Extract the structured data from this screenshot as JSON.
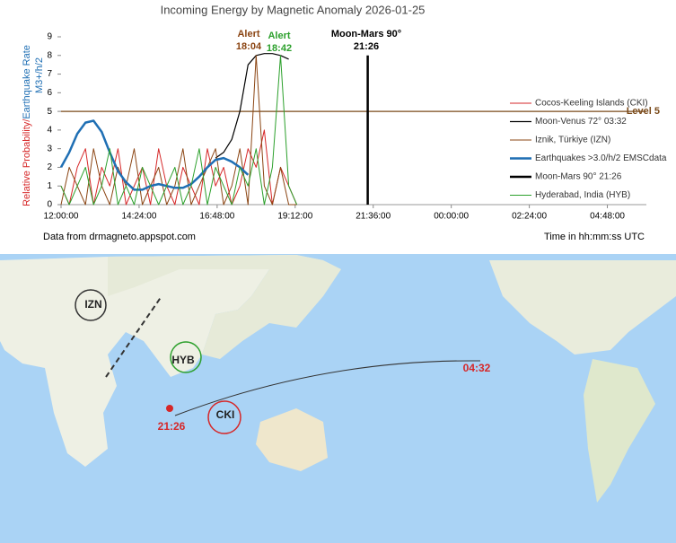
{
  "chart_data": {
    "type": "line",
    "title": "Incoming Energy by Magnetic Anomaly 2026-01-25",
    "ylabel_parts": [
      "Relative Probability/",
      "Earthquake Rate"
    ],
    "ylabel2": "M3+/h/2",
    "ylim": [
      0,
      9
    ],
    "yticks": [
      0,
      1,
      2,
      3,
      4,
      5,
      6,
      7,
      8,
      9
    ],
    "xlim": [
      12,
      30
    ],
    "xticks": [
      {
        "value": 12,
        "label": "12:00:00"
      },
      {
        "value": 14.4,
        "label": "14:24:00"
      },
      {
        "value": 16.8,
        "label": "16:48:00"
      },
      {
        "value": 19.2,
        "label": "19:12:00"
      },
      {
        "value": 21.6,
        "label": "21:36:00"
      },
      {
        "value": 24,
        "label": "00:00:00"
      },
      {
        "value": 26.4,
        "label": "02:24:00"
      },
      {
        "value": 28.8,
        "label": "04:48:00"
      }
    ],
    "x": [
      12,
      12.25,
      12.5,
      12.75,
      13,
      13.25,
      13.5,
      13.75,
      14,
      14.25,
      14.5,
      14.75,
      15,
      15.25,
      15.5,
      15.75,
      16,
      16.25,
      16.5,
      16.75,
      17,
      17.25,
      17.5,
      17.75,
      18,
      18.25,
      18.5,
      18.75,
      19,
      19.25
    ],
    "series": [
      {
        "name": "Cocos-Keeling Islands (CKI)",
        "color": "#d62728",
        "width": 1,
        "values": [
          1,
          0,
          2,
          3,
          0,
          2,
          1,
          3,
          0,
          1,
          2,
          0,
          3,
          1,
          0,
          2,
          1,
          0,
          3,
          1,
          2,
          0,
          1,
          3,
          2,
          4,
          0,
          2,
          1,
          0
        ]
      },
      {
        "name": "Moon-Venus 72° 03:32",
        "color": "#000000",
        "width": 1.2,
        "values": [
          null,
          null,
          null,
          null,
          null,
          null,
          null,
          null,
          null,
          null,
          null,
          null,
          null,
          null,
          null,
          null,
          null,
          null,
          null,
          2.5,
          2.8,
          3.5,
          5.0,
          7.5,
          8.0,
          8.1,
          8.1,
          8.0,
          7.8,
          null
        ]
      },
      {
        "name": "Iznik, Türkiye (IZN)",
        "color": "#8b4513",
        "width": 1,
        "values": [
          0,
          2,
          1,
          0,
          3,
          1,
          0,
          2,
          1,
          3,
          0,
          1,
          2,
          0,
          1,
          3,
          0,
          1,
          2,
          3,
          0,
          1,
          3,
          0,
          8,
          1,
          0,
          2,
          0,
          0
        ]
      },
      {
        "name": "Earthquakes >3.0/h/2 EMSCdata",
        "color": "#1f6fb4",
        "width": 2.5,
        "values": [
          2,
          2.8,
          3.8,
          4.4,
          4.5,
          3.9,
          2.8,
          1.8,
          1.2,
          0.8,
          0.8,
          1.0,
          1.1,
          1.0,
          0.9,
          0.9,
          1.1,
          1.5,
          2.0,
          2.4,
          2.5,
          2.3,
          2.0,
          1.6,
          null,
          null,
          null,
          null,
          null,
          null
        ]
      },
      {
        "name": "Moon-Mars 90° 21:26",
        "color": "#000000",
        "width": 2.5,
        "x": [
          21.43,
          21.43
        ],
        "values": [
          0,
          8
        ]
      },
      {
        "name": "Hyderabad, India (HYB)",
        "color": "#2ca02c",
        "width": 1,
        "values": [
          1,
          0,
          1,
          2,
          0,
          1,
          3,
          0,
          1,
          0,
          2,
          1,
          0,
          1,
          2,
          0,
          1,
          3,
          0,
          2,
          1,
          0,
          2,
          1,
          3,
          0,
          2,
          8,
          1,
          0
        ]
      }
    ],
    "level": {
      "value": 5,
      "label": "Level 5",
      "color": "#7a4a1a"
    },
    "annotations": [
      {
        "lines": [
          "Alert",
          "18:04"
        ],
        "color": "#8b4513"
      },
      {
        "lines": [
          "Alert",
          "18:42"
        ],
        "color": "#2ca02c"
      },
      {
        "lines": [
          "Moon-Mars 90°",
          "21:26"
        ],
        "color": "#000000"
      }
    ],
    "source": "Data from drmagneto.appspot.com",
    "xlabel": "Time in hh:mm:ss UTC",
    "legend": "right"
  },
  "map": {
    "labels": [
      "IZN",
      "HYB",
      "CKI",
      "21:26",
      "04:32"
    ]
  }
}
